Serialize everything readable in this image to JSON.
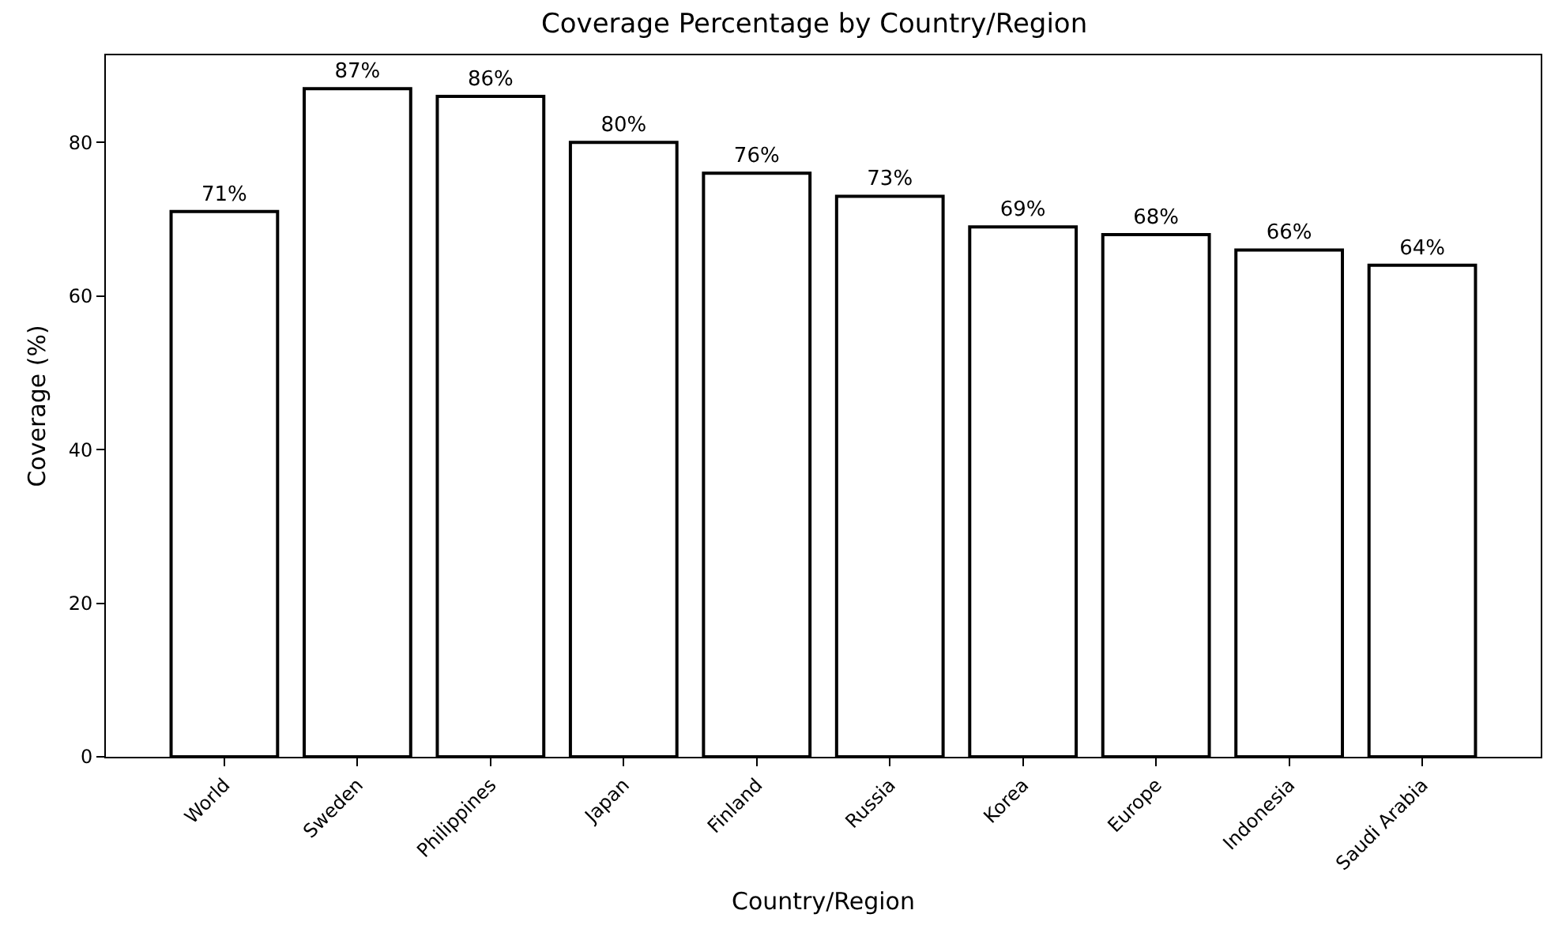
{
  "chart_data": {
    "type": "bar",
    "title": "Coverage Percentage by Country/Region",
    "xlabel": "Country/Region",
    "ylabel": "Coverage (%)",
    "categories": [
      "World",
      "Sweden",
      "Philippines",
      "Japan",
      "Finland",
      "Russia",
      "Korea",
      "Europe",
      "Indonesia",
      "Saudi Arabia"
    ],
    "values": [
      71,
      87,
      86,
      80,
      76,
      73,
      69,
      68,
      66,
      64
    ],
    "value_labels": [
      "71%",
      "87%",
      "86%",
      "80%",
      "76%",
      "73%",
      "69%",
      "68%",
      "66%",
      "64%"
    ],
    "color": "#ffffff",
    "ylim": [
      0,
      91.35
    ],
    "yticks": [
      0,
      20,
      40,
      60,
      80
    ],
    "grid": false
  }
}
